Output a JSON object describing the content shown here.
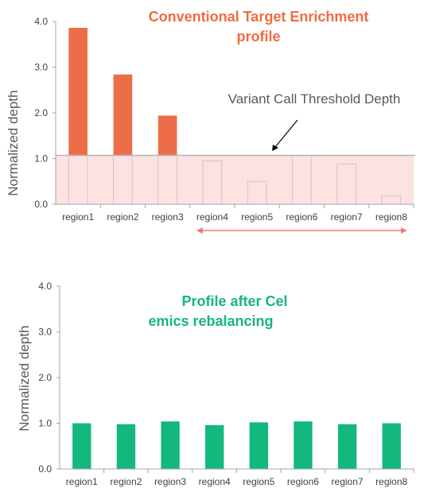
{
  "colors": {
    "conventional": "#ec6d47",
    "rebalanced": "#12b87c",
    "threshold_band": "#fde2e2",
    "threshold_line": "#b5b5b5",
    "range_arrow": "#ee7b7b",
    "axis": "#a6a6a6"
  },
  "chart_data": [
    {
      "type": "bar",
      "title": "Conventional Target Enrichment profile",
      "title_lines": [
        "Conventional Target Enrichment",
        "profile"
      ],
      "ylabel": "Normalized depth",
      "xlabel": "",
      "ylim": [
        0,
        4
      ],
      "yticks": [
        "0.0",
        "1.0",
        "2.0",
        "3.0",
        "4.0"
      ],
      "categories": [
        "region1",
        "region2",
        "region3",
        "region4",
        "region5",
        "region6",
        "region7",
        "region8"
      ],
      "values": [
        3.86,
        2.84,
        1.94,
        0.95,
        0.5,
        1.07,
        0.88,
        0.18
      ],
      "threshold": 1.07,
      "annotation": "Variant Call Threshold Depth",
      "range_arrow_from": "region4",
      "range_arrow_to": "region8"
    },
    {
      "type": "bar",
      "title": "Profile after Celemics rebalancing",
      "title_lines": [
        "Profile after  Cel",
        "emics rebalancing"
      ],
      "ylabel": "Normalized depth",
      "xlabel": "",
      "ylim": [
        0,
        4
      ],
      "yticks": [
        "0.0",
        "1.0",
        "2.0",
        "3.0",
        "4.0"
      ],
      "categories": [
        "region1",
        "region2",
        "region3",
        "region4",
        "region5",
        "region6",
        "region7",
        "region8"
      ],
      "values": [
        1.0,
        0.98,
        1.04,
        0.96,
        1.02,
        1.04,
        0.98,
        1.0
      ]
    }
  ]
}
